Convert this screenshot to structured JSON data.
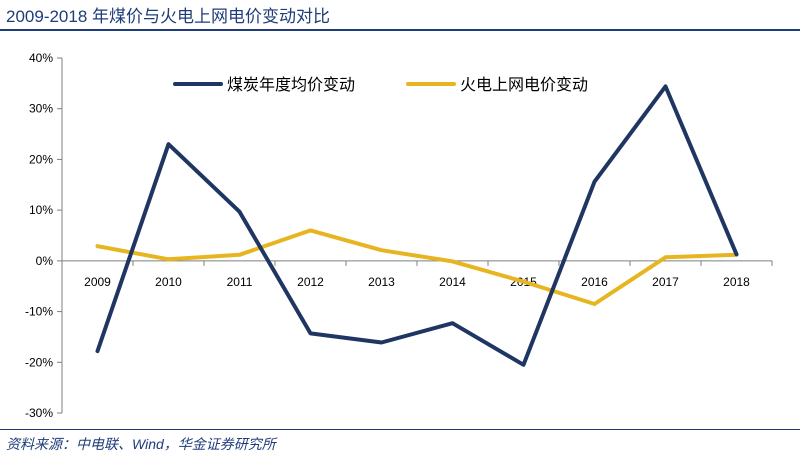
{
  "header": {
    "title": "2009-2018 年煤价与火电上网电价变动对比"
  },
  "footer": {
    "source": "资料来源：中电联、Wind，华金证券研究所"
  },
  "chart_data": {
    "type": "line",
    "title": "2009-2018 年煤价与火电上网电价变动对比",
    "xlabel": "",
    "ylabel": "",
    "categories": [
      "2009",
      "2010",
      "2011",
      "2012",
      "2013",
      "2014",
      "2015",
      "2016",
      "2017",
      "2018"
    ],
    "yticks": [
      "40%",
      "30%",
      "20%",
      "10%",
      "0%",
      "-10%",
      "-20%",
      "-30%"
    ],
    "ytick_values": [
      40,
      30,
      20,
      10,
      0,
      -10,
      -20,
      -30
    ],
    "ylim": [
      -30,
      40
    ],
    "grid": false,
    "legend_position": "top",
    "series": [
      {
        "name": "煤炭年度均价变动",
        "color": "#1f3562",
        "values": [
          -17.8,
          23.0,
          9.7,
          -14.3,
          -16.1,
          -12.3,
          -20.5,
          15.6,
          34.4,
          1.3
        ]
      },
      {
        "name": "火电上网电价变动",
        "color": "#e6b520",
        "values": [
          2.9,
          0.3,
          1.2,
          6.0,
          2.1,
          -0.1,
          -4.1,
          -8.5,
          0.7,
          1.2
        ]
      }
    ]
  }
}
